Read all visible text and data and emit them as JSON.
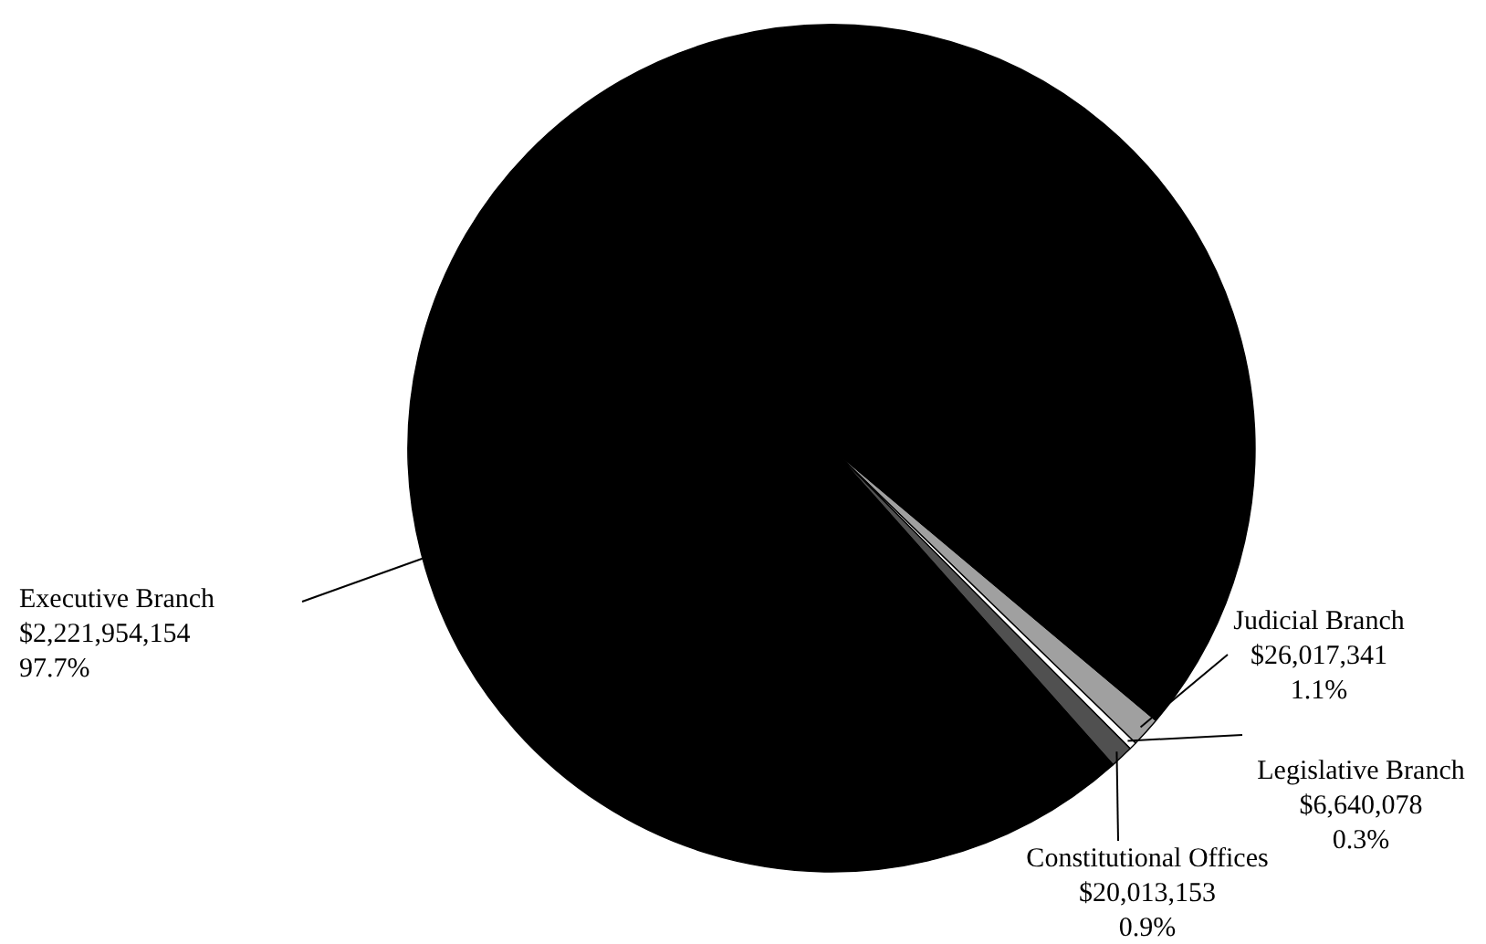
{
  "chart_data": {
    "type": "pie",
    "categories": [
      "Judicial Branch",
      "Legislative Branch",
      "Constitutional Offices",
      "Executive Branch"
    ],
    "values": [
      26017341,
      6640078,
      20013153,
      2221954154
    ],
    "colors": [
      "#a0a0a0",
      "#ffffff",
      "#505050",
      "#000000"
    ],
    "value_labels": [
      "$26,017,341\n1.1%",
      "$6,640,078\n0.3%",
      "$20,013,153\n0.9%",
      "$2,221,954,154\n97.7%"
    ]
  }
}
